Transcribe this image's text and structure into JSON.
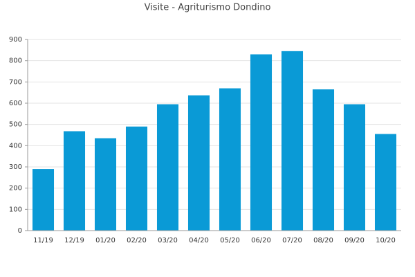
{
  "chart_data": {
    "type": "bar",
    "title": "Visite - Agriturismo Dondino",
    "categories": [
      "11/19",
      "12/19",
      "01/20",
      "02/20",
      "03/20",
      "04/20",
      "05/20",
      "06/20",
      "07/20",
      "08/20",
      "09/20",
      "10/20"
    ],
    "values": [
      290,
      468,
      435,
      490,
      595,
      637,
      670,
      830,
      845,
      665,
      595,
      455
    ],
    "color": "#0a9ad6",
    "ylim": [
      0,
      900
    ],
    "yticks": [
      0,
      100,
      200,
      300,
      400,
      500,
      600,
      700,
      800,
      900
    ],
    "grid": true
  }
}
